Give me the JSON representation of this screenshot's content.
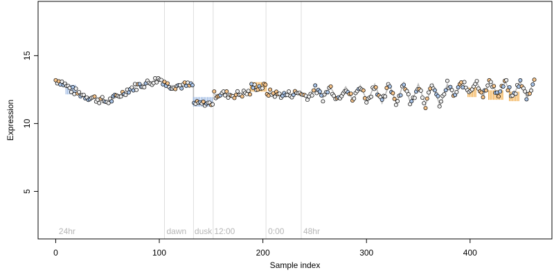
{
  "chart_data": {
    "type": "scatter",
    "title": "",
    "xlabel": "Sample index",
    "ylabel": "Expression",
    "xlim": [
      -17,
      479
    ],
    "ylim": [
      1.5,
      19
    ],
    "xticks": [
      0,
      100,
      200,
      300,
      400
    ],
    "yticks": [
      5,
      10,
      15
    ],
    "grid": false,
    "legend": "none",
    "colors": {
      "point_fill_light": "#f0f0f0",
      "point_fill_orange": "#f7c48a",
      "point_fill_blue": "#a9c4e8",
      "point_edge": "#000000",
      "bar_orange": "#f0a436",
      "bar_blue": "#8fb0e0",
      "fit_line": "#b8b8b8",
      "divider": "#dcdcdc",
      "annotation_text": "#b5b5b5"
    },
    "dividers": [
      105,
      133,
      152,
      203,
      237
    ],
    "annotations": [
      {
        "text": "24hr",
        "x": 3
      },
      {
        "text": "dawn",
        "x": 107
      },
      {
        "text": "dusk",
        "x": 134
      },
      {
        "text": "12:00",
        "x": 153
      },
      {
        "text": "0:00",
        "x": 205
      },
      {
        "text": "48hr",
        "x": 239
      }
    ],
    "fit_segments": [
      {
        "x": [
          0,
          5,
          10,
          15,
          20,
          30,
          40,
          50,
          60,
          70,
          80,
          90,
          100,
          105
        ],
        "y": [
          13.2,
          13.1,
          12.8,
          12.5,
          12.3,
          12.0,
          11.8,
          11.6,
          12.0,
          12.5,
          12.8,
          13.0,
          13.3,
          13.1
        ]
      },
      {
        "x": [
          105,
          110,
          120,
          130,
          133
        ],
        "y": [
          12.9,
          12.8,
          12.8,
          12.8,
          12.8
        ]
      },
      {
        "x": [
          133,
          133,
          152
        ],
        "y": [
          12.8,
          11.6,
          11.6
        ]
      },
      {
        "x": [
          152,
          160,
          170,
          180,
          188
        ],
        "y": [
          12.1,
          12.2,
          12.1,
          12.2,
          12.3
        ]
      },
      {
        "x": [
          188,
          188,
          203
        ],
        "y": [
          12.3,
          12.7,
          12.7
        ]
      },
      {
        "x": [
          203,
          210,
          220,
          230,
          237
        ],
        "y": [
          12.3,
          12.2,
          12.1,
          12.2,
          12.3
        ]
      },
      {
        "x": [
          237,
          245,
          250,
          258,
          265,
          272,
          280,
          287,
          294,
          301,
          308,
          315,
          322,
          329,
          336,
          343,
          350,
          357,
          364,
          371,
          378,
          385,
          392,
          399,
          406,
          413,
          420,
          427,
          434,
          441,
          448,
          455,
          462
        ],
        "y": [
          12.1,
          12.0,
          12.6,
          11.9,
          12.7,
          11.8,
          12.7,
          11.7,
          12.8,
          11.6,
          12.9,
          11.5,
          12.9,
          11.5,
          13.0,
          11.4,
          12.9,
          11.4,
          12.9,
          11.3,
          12.9,
          12.0,
          13.0,
          12.4,
          13.1,
          12.1,
          13.2,
          12.0,
          13.1,
          11.9,
          13.1,
          11.9,
          13.2
        ]
      }
    ],
    "bar_segments": [
      {
        "x_start": 10,
        "x_end": 20,
        "y": 12.5,
        "color": "blue"
      },
      {
        "x_start": 133,
        "x_end": 152,
        "y": 11.6,
        "color": "blue"
      },
      {
        "x_start": 188,
        "x_end": 203,
        "y": 12.7,
        "color": "orange"
      },
      {
        "x_start": 398,
        "x_end": 406,
        "y": 12.3,
        "color": "orange"
      },
      {
        "x_start": 418,
        "x_end": 432,
        "y": 12.1,
        "color": "orange"
      },
      {
        "x_start": 438,
        "x_end": 448,
        "y": 12.0,
        "color": "orange"
      }
    ],
    "points": {
      "generated_series": true,
      "description_free": true,
      "x_range": [
        0,
        462
      ]
    }
  }
}
